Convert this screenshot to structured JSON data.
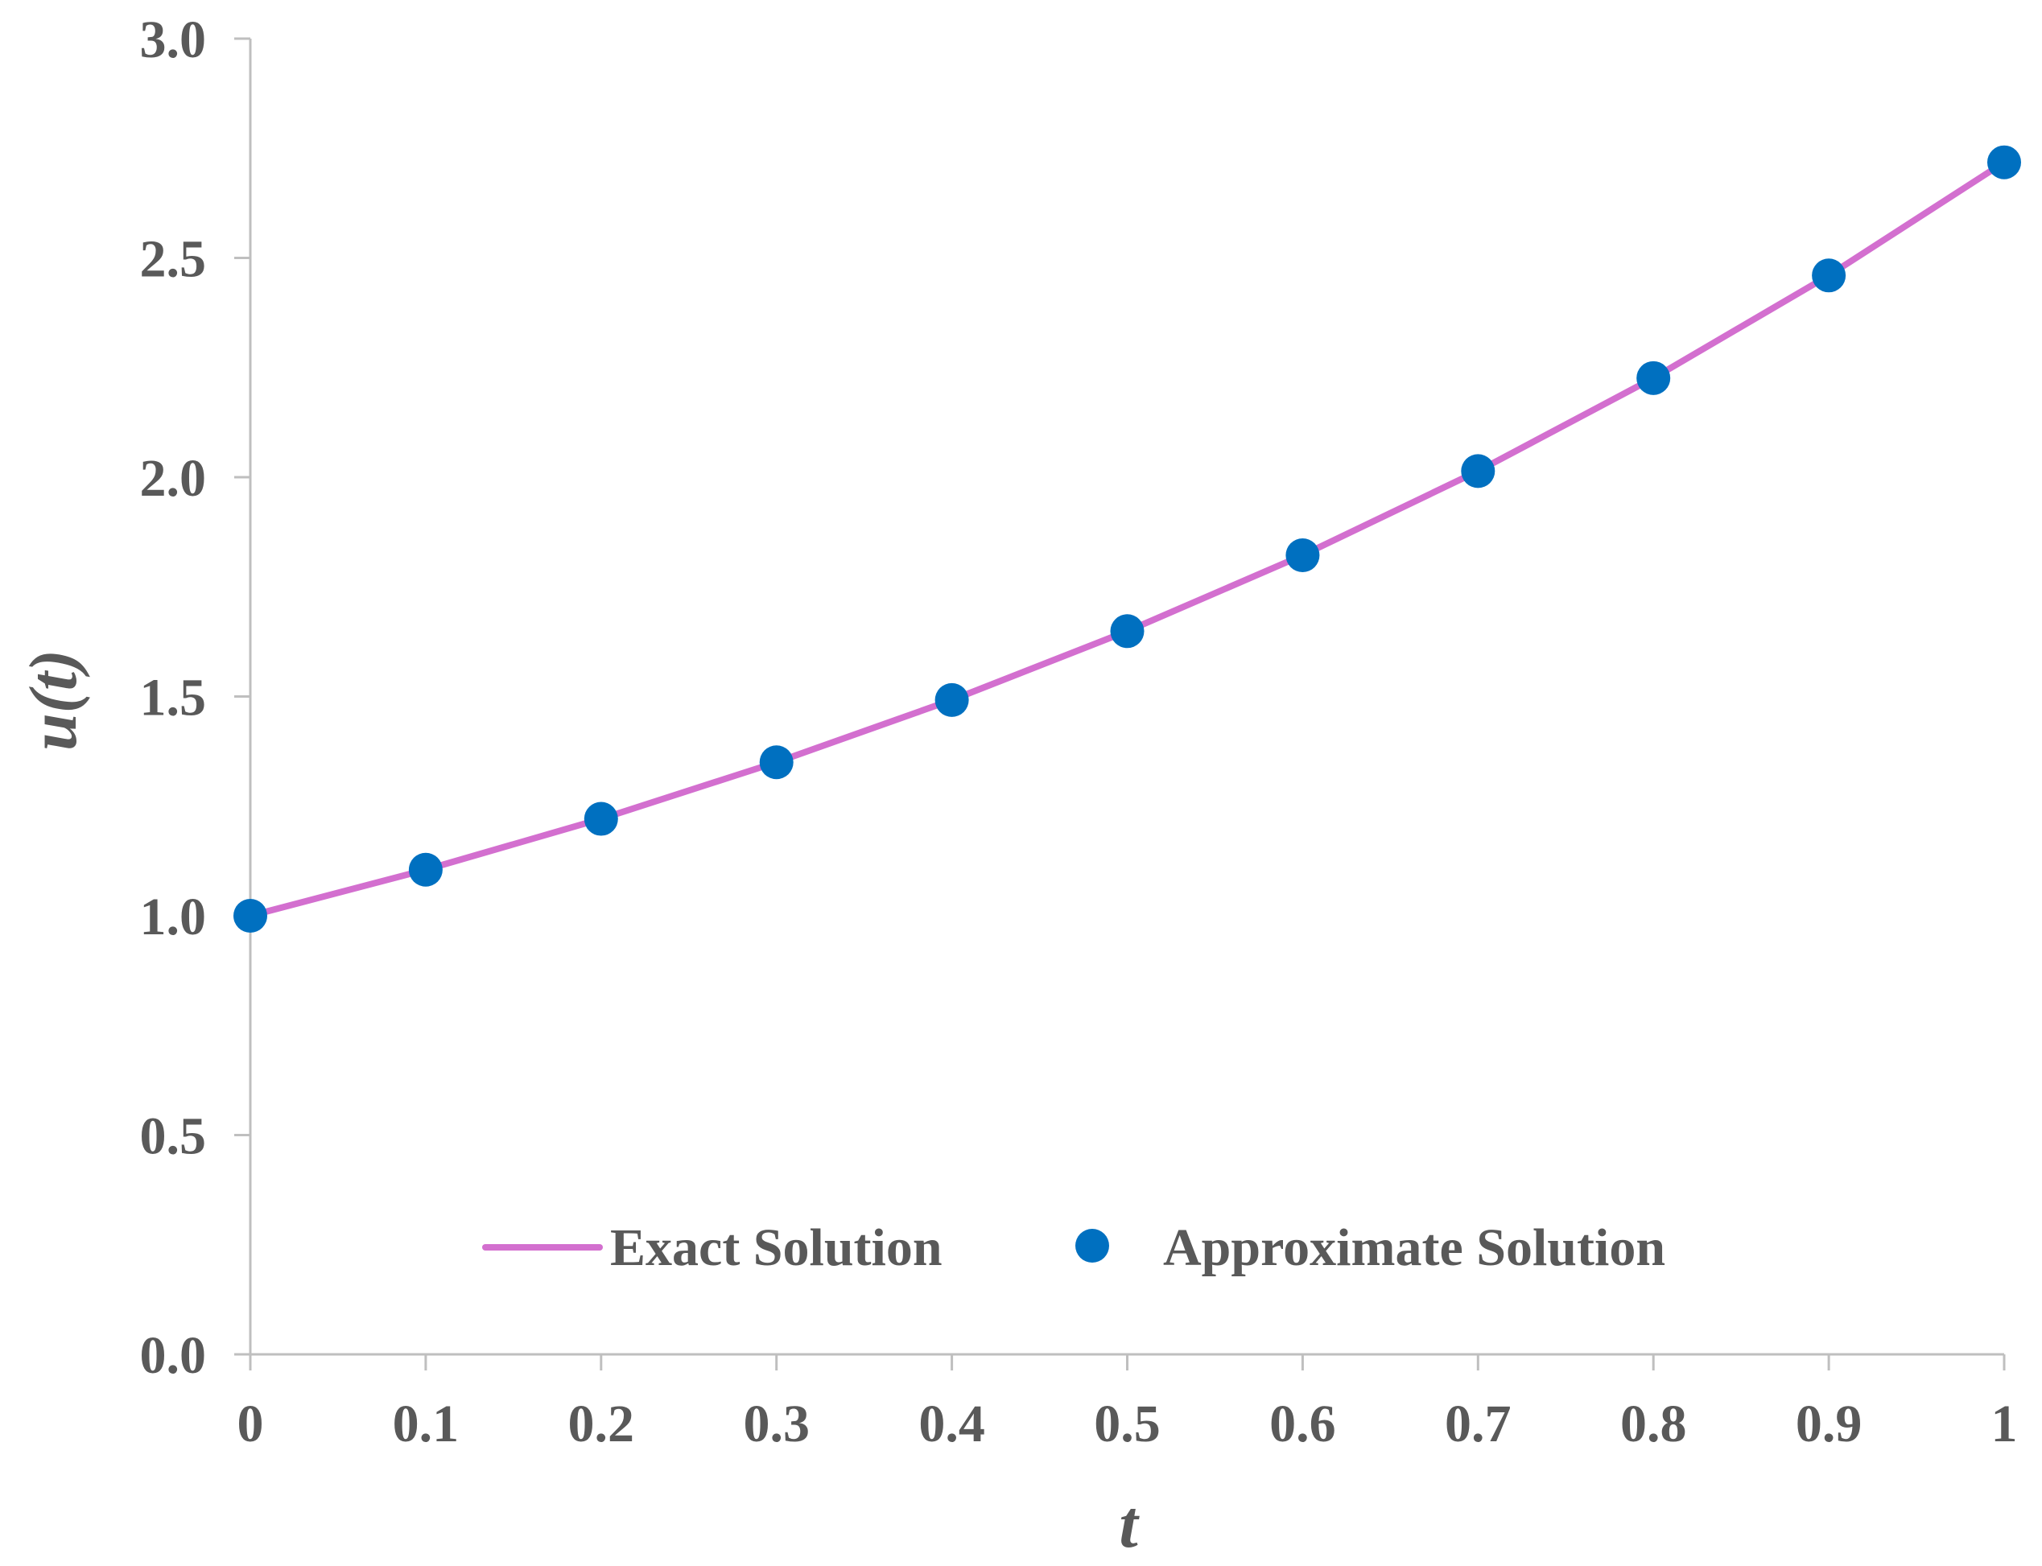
{
  "chart_data": {
    "type": "line",
    "title": "",
    "xlabel": "t",
    "ylabel": "u(t)",
    "xlim": [
      0,
      1
    ],
    "ylim": [
      0,
      3
    ],
    "x_ticks": [
      "0",
      "0.1",
      "0.2",
      "0.3",
      "0.4",
      "0.5",
      "0.6",
      "0.7",
      "0.8",
      "0.9",
      "1"
    ],
    "y_ticks": [
      "0.0",
      "0.5",
      "1.0",
      "1.5",
      "2.0",
      "2.5",
      "3.0"
    ],
    "grid": false,
    "legend_position": "bottom-center",
    "series": [
      {
        "name": "Exact Solution",
        "style": "line",
        "color": "#D36FCF",
        "x": [
          0,
          0.1,
          0.2,
          0.3,
          0.4,
          0.5,
          0.6,
          0.7,
          0.8,
          0.9,
          1
        ],
        "values": [
          1.0,
          1.105,
          1.221,
          1.35,
          1.492,
          1.649,
          1.822,
          2.014,
          2.226,
          2.46,
          2.718
        ]
      },
      {
        "name": "Approximate Solution",
        "style": "markers",
        "color": "#0070C0",
        "x": [
          0,
          0.1,
          0.2,
          0.3,
          0.4,
          0.5,
          0.6,
          0.7,
          0.8,
          0.9,
          1
        ],
        "values": [
          1.0,
          1.105,
          1.221,
          1.35,
          1.492,
          1.649,
          1.822,
          2.014,
          2.226,
          2.46,
          2.718
        ]
      }
    ],
    "axis_color": "#BFBFBF"
  }
}
